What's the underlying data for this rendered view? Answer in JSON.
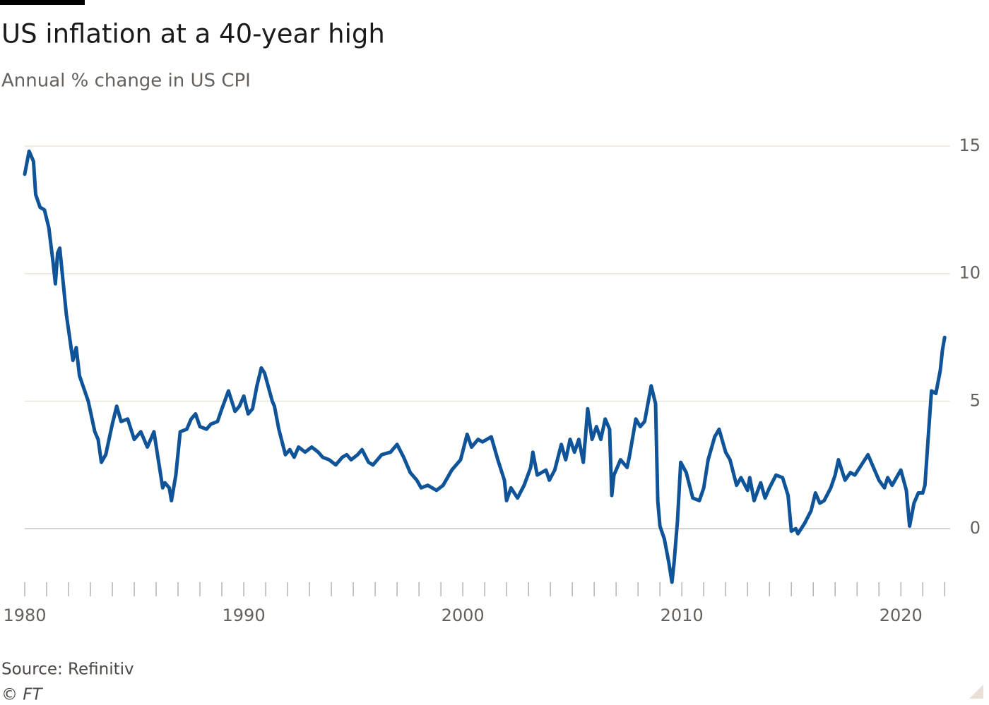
{
  "chart_data": {
    "type": "line",
    "title": "US inflation at a 40-year high",
    "subtitle": "Annual % change in US CPI",
    "source": "Source: Refinitiv",
    "credit": "© FT",
    "color": "#0f5499",
    "grid": true,
    "xlim": [
      1980,
      2022.25
    ],
    "xticks": [
      1980,
      1990,
      2000,
      2010,
      2020
    ],
    "xminorticks": [
      1981,
      1982,
      1983,
      1984,
      1985,
      1986,
      1987,
      1988,
      1989,
      1991,
      1992,
      1993,
      1994,
      1995,
      1996,
      1997,
      1998,
      1999,
      2001,
      2002,
      2003,
      2004,
      2005,
      2006,
      2007,
      2008,
      2009,
      2011,
      2012,
      2013,
      2014,
      2015,
      2016,
      2017,
      2018,
      2019,
      2021,
      2022
    ],
    "ylim": [
      -2.1,
      15
    ],
    "yticks": [
      0,
      5,
      10,
      15
    ],
    "x": [
      1980.0,
      1980.2,
      1980.4,
      1980.5,
      1980.7,
      1980.9,
      1981.1,
      1981.3,
      1981.4,
      1981.5,
      1981.6,
      1981.9,
      1982.2,
      1982.35,
      1982.5,
      1982.9,
      1983.2,
      1983.35,
      1983.5,
      1983.7,
      1984.0,
      1984.2,
      1984.4,
      1984.7,
      1985.0,
      1985.3,
      1985.6,
      1985.9,
      1986.3,
      1986.4,
      1986.6,
      1986.7,
      1986.9,
      1987.1,
      1987.4,
      1987.6,
      1987.8,
      1988.0,
      1988.3,
      1988.5,
      1988.8,
      1989.0,
      1989.3,
      1989.6,
      1989.8,
      1990.0,
      1990.2,
      1990.4,
      1990.6,
      1990.8,
      1990.95,
      1991.3,
      1991.4,
      1991.6,
      1991.9,
      1992.1,
      1992.3,
      1992.5,
      1992.8,
      1993.1,
      1993.4,
      1993.6,
      1993.9,
      1994.2,
      1994.5,
      1994.7,
      1994.9,
      1995.2,
      1995.4,
      1995.7,
      1995.9,
      1996.3,
      1996.7,
      1997.0,
      1997.3,
      1997.6,
      1997.9,
      1998.1,
      1998.4,
      1998.8,
      1999.1,
      1999.5,
      1999.9,
      2000.2,
      2000.4,
      2000.7,
      2000.9,
      2001.3,
      2001.6,
      2001.9,
      2002.0,
      2002.2,
      2002.5,
      2002.8,
      2003.1,
      2003.2,
      2003.4,
      2003.8,
      2003.95,
      2004.2,
      2004.5,
      2004.7,
      2004.9,
      2005.1,
      2005.3,
      2005.5,
      2005.6,
      2005.7,
      2005.9,
      2006.1,
      2006.3,
      2006.5,
      2006.7,
      2006.8,
      2006.9,
      2007.2,
      2007.5,
      2007.6,
      2007.9,
      2008.1,
      2008.3,
      2008.6,
      2008.8,
      2008.9,
      2009.0,
      2009.2,
      2009.4,
      2009.55,
      2009.65,
      2009.8,
      2009.95,
      2010.2,
      2010.5,
      2010.8,
      2011.0,
      2011.2,
      2011.5,
      2011.7,
      2012.0,
      2012.2,
      2012.5,
      2012.7,
      2013.0,
      2013.1,
      2013.3,
      2013.6,
      2013.8,
      2014.0,
      2014.3,
      2014.6,
      2014.85,
      2015.0,
      2015.2,
      2015.3,
      2015.6,
      2015.9,
      2016.1,
      2016.3,
      2016.5,
      2016.8,
      2017.0,
      2017.15,
      2017.45,
      2017.7,
      2017.9,
      2018.2,
      2018.5,
      2018.7,
      2019.0,
      2019.25,
      2019.4,
      2019.6,
      2020.0,
      2020.25,
      2020.4,
      2020.6,
      2020.8,
      2021.0,
      2021.1,
      2021.3,
      2021.4,
      2021.6,
      2021.8,
      2021.9,
      2022.0
    ],
    "values": [
      13.9,
      14.8,
      14.4,
      13.1,
      12.6,
      12.5,
      11.8,
      10.4,
      9.6,
      10.8,
      11.0,
      8.4,
      6.6,
      7.1,
      6.0,
      5.0,
      3.8,
      3.5,
      2.6,
      2.9,
      4.1,
      4.8,
      4.2,
      4.3,
      3.5,
      3.8,
      3.2,
      3.8,
      1.6,
      1.8,
      1.6,
      1.1,
      2.1,
      3.8,
      3.9,
      4.3,
      4.5,
      4.0,
      3.9,
      4.1,
      4.2,
      4.7,
      5.4,
      4.6,
      4.8,
      5.2,
      4.5,
      4.7,
      5.6,
      6.3,
      6.1,
      5.0,
      4.8,
      3.9,
      2.9,
      3.1,
      2.8,
      3.2,
      3.0,
      3.2,
      3.0,
      2.8,
      2.7,
      2.5,
      2.8,
      2.9,
      2.7,
      2.9,
      3.1,
      2.6,
      2.5,
      2.9,
      3.0,
      3.3,
      2.8,
      2.2,
      1.9,
      1.6,
      1.7,
      1.5,
      1.7,
      2.3,
      2.7,
      3.7,
      3.2,
      3.5,
      3.4,
      3.6,
      2.7,
      1.9,
      1.1,
      1.6,
      1.2,
      1.7,
      2.4,
      3.0,
      2.1,
      2.3,
      1.9,
      2.3,
      3.3,
      2.7,
      3.5,
      3.0,
      3.5,
      2.6,
      3.6,
      4.7,
      3.5,
      4.0,
      3.5,
      4.3,
      3.9,
      1.3,
      2.1,
      2.7,
      2.4,
      2.8,
      4.3,
      4.0,
      4.2,
      5.6,
      4.9,
      1.1,
      0.1,
      -0.4,
      -1.3,
      -2.1,
      -1.3,
      0.3,
      2.6,
      2.2,
      1.2,
      1.1,
      1.6,
      2.7,
      3.6,
      3.9,
      3.0,
      2.7,
      1.7,
      2.0,
      1.5,
      2.0,
      1.1,
      1.8,
      1.2,
      1.6,
      2.1,
      2.0,
      1.3,
      -0.1,
      0.0,
      -0.2,
      0.2,
      0.7,
      1.4,
      1.0,
      1.1,
      1.6,
      2.1,
      2.7,
      1.9,
      2.2,
      2.1,
      2.5,
      2.9,
      2.5,
      1.9,
      1.6,
      2.0,
      1.7,
      2.3,
      1.5,
      0.1,
      1.0,
      1.4,
      1.4,
      1.7,
      4.2,
      5.4,
      5.3,
      6.2,
      7.0,
      7.5
    ]
  }
}
